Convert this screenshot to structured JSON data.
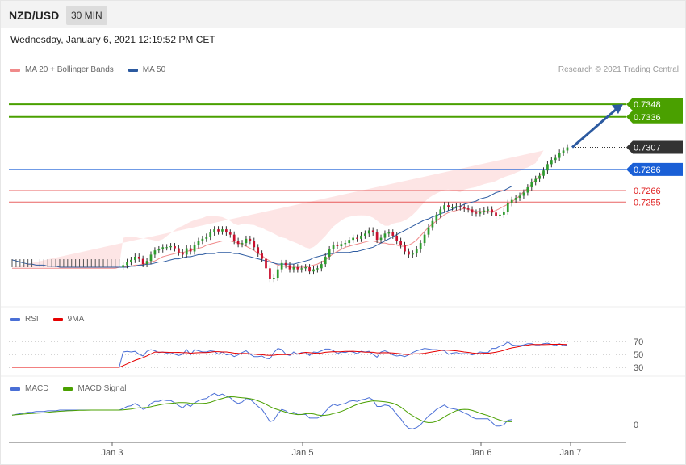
{
  "header": {
    "pair": "NZD/USD",
    "timeframe": "30 MIN"
  },
  "datetime": "Wednesday, January 6, 2021 12:19:52 PM CET",
  "credit": "Research © 2021 Trading Central",
  "legends": {
    "main": [
      {
        "label": "MA 20 + Bollinger Bands",
        "color": "#f08a8a"
      },
      {
        "label": "MA 50",
        "color": "#2c5aa0"
      }
    ],
    "rsi": [
      {
        "label": "RSI",
        "color": "#4a6fd6"
      },
      {
        "label": "9MA",
        "color": "#e60000"
      }
    ],
    "macd": [
      {
        "label": "MACD",
        "color": "#4a6fd6"
      },
      {
        "label": "MACD Signal",
        "color": "#4aa000"
      }
    ]
  },
  "chart_data": {
    "type": "candlestick",
    "x_ticks": [
      "Jan 3",
      "Jan 5",
      "Jan 6",
      "Jan 7"
    ],
    "price_range": [
      0.716,
      0.7365
    ],
    "levels": [
      {
        "value": 0.7348,
        "label": "0.7348",
        "kind": "resistance",
        "color": "#4aa000"
      },
      {
        "value": 0.7336,
        "label": "0.7336",
        "kind": "resistance",
        "color": "#4aa000"
      },
      {
        "value": 0.7307,
        "label": "0.7307",
        "kind": "last",
        "color": "#333333"
      },
      {
        "value": 0.7286,
        "label": "0.7286",
        "kind": "pivot",
        "color": "#1a5fd6"
      },
      {
        "value": 0.7266,
        "label": "0.7266",
        "kind": "support",
        "color": "#e02020"
      },
      {
        "value": 0.7255,
        "label": "0.7255",
        "kind": "support",
        "color": "#e02020"
      }
    ],
    "target": {
      "from": 0.7307,
      "to": 0.7348
    },
    "close": [
      0.7193,
      0.7193,
      0.7193,
      0.7193,
      0.7193,
      0.7193,
      0.7193,
      0.7193,
      0.7193,
      0.7193,
      0.7193,
      0.7193,
      0.7193,
      0.7193,
      0.7193,
      0.7193,
      0.7193,
      0.7193,
      0.7193,
      0.7193,
      0.7193,
      0.7193,
      0.7193,
      0.7193,
      0.7193,
      0.7193,
      0.7193,
      0.7193,
      0.7195,
      0.7198,
      0.72,
      0.7203,
      0.7201,
      0.7196,
      0.7199,
      0.7205,
      0.7209,
      0.721,
      0.7212,
      0.7212,
      0.7213,
      0.7211,
      0.7207,
      0.7205,
      0.7211,
      0.7208,
      0.7214,
      0.7218,
      0.722,
      0.7222,
      0.7226,
      0.7229,
      0.7227,
      0.7229,
      0.7226,
      0.7224,
      0.7218,
      0.7215,
      0.7216,
      0.722,
      0.7218,
      0.7212,
      0.7206,
      0.7201,
      0.7192,
      0.7182,
      0.7183,
      0.7191,
      0.7197,
      0.7195,
      0.7191,
      0.7193,
      0.7191,
      0.7192,
      0.7193,
      0.7189,
      0.7191,
      0.7192,
      0.7196,
      0.7203,
      0.721,
      0.7214,
      0.7213,
      0.7215,
      0.7216,
      0.7219,
      0.7221,
      0.722,
      0.7223,
      0.7225,
      0.7228,
      0.7226,
      0.7219,
      0.7221,
      0.7225,
      0.7226,
      0.7223,
      0.7218,
      0.7214,
      0.7208,
      0.7205,
      0.7206,
      0.721,
      0.7216,
      0.7224,
      0.7231,
      0.7237,
      0.7243,
      0.7248,
      0.7252,
      0.725,
      0.725,
      0.7251,
      0.725,
      0.7249,
      0.7248,
      0.7245,
      0.7244,
      0.7246,
      0.7247,
      0.7248,
      0.7245,
      0.7242,
      0.7243,
      0.7246,
      0.7254,
      0.7257,
      0.7259,
      0.7261,
      0.7264,
      0.7269,
      0.7274,
      0.7277,
      0.728,
      0.7285,
      0.7291,
      0.7295,
      0.7297,
      0.7302,
      0.7304,
      0.7307
    ],
    "ma20": [
      0.7192,
      0.7192,
      0.7192,
      0.7192,
      0.7192,
      0.7192,
      0.7192,
      0.7192,
      0.7192,
      0.7192,
      0.7192,
      0.7192,
      0.7192,
      0.7192,
      0.7192,
      0.7192,
      0.7192,
      0.7192,
      0.7192,
      0.7192,
      0.7192,
      0.7192,
      0.7192,
      0.7192,
      0.7192,
      0.7192,
      0.7192,
      0.7193,
      0.7193,
      0.7194,
      0.7194,
      0.7195,
      0.7195,
      0.7196,
      0.7197,
      0.7198,
      0.7199,
      0.7201,
      0.7203,
      0.7204,
      0.7205,
      0.7206,
      0.7207,
      0.7207,
      0.7208,
      0.7209,
      0.721,
      0.7211,
      0.7212,
      0.7214,
      0.7215,
      0.7216,
      0.7217,
      0.7218,
      0.7218,
      0.7218,
      0.7217,
      0.7216,
      0.7215,
      0.7213,
      0.7211,
      0.7209,
      0.7206,
      0.7204,
      0.7201,
      0.7199,
      0.7197,
      0.7195,
      0.7194,
      0.7194,
      0.7193,
      0.7193,
      0.7193,
      0.7193,
      0.7193,
      0.7194,
      0.7195,
      0.7196,
      0.7198,
      0.72,
      0.7203,
      0.7206,
      0.7208,
      0.721,
      0.7212,
      0.7213,
      0.7214,
      0.7215,
      0.7216,
      0.7217,
      0.7218,
      0.7218,
      0.7217,
      0.7216,
      0.7216,
      0.7215,
      0.7215,
      0.7214,
      0.7213,
      0.7213,
      0.7214,
      0.7216,
      0.7219,
      0.7223,
      0.7227,
      0.7231,
      0.7234,
      0.7237,
      0.724,
      0.7243,
      0.7245,
      0.7246,
      0.7247,
      0.7248,
      0.7249,
      0.7248,
      0.7247,
      0.7246,
      0.7246,
      0.7246,
      0.7246,
      0.7246,
      0.7247,
      0.7249,
      0.7251,
      0.7253,
      0.7255,
      0.7258,
      0.7261,
      0.7265,
      0.7268,
      0.7272,
      0.7276,
      0.728,
      0.7284
    ],
    "ma50": [
      0.72,
      0.7199,
      0.7198,
      0.7197,
      0.7196,
      0.7196,
      0.7195,
      0.7195,
      0.7195,
      0.7194,
      0.7194,
      0.7194,
      0.7193,
      0.7193,
      0.7193,
      0.7193,
      0.7193,
      0.7193,
      0.7193,
      0.7193,
      0.7193,
      0.7193,
      0.7193,
      0.7193,
      0.7193,
      0.7193,
      0.7193,
      0.7193,
      0.7193,
      0.7193,
      0.7194,
      0.7194,
      0.7195,
      0.7195,
      0.7196,
      0.7196,
      0.7197,
      0.7198,
      0.7198,
      0.7199,
      0.72,
      0.7201,
      0.7201,
      0.7202,
      0.7203,
      0.7203,
      0.7204,
      0.7205,
      0.7205,
      0.7206,
      0.7206,
      0.7206,
      0.7207,
      0.7207,
      0.7207,
      0.7207,
      0.7206,
      0.7206,
      0.7205,
      0.7204,
      0.7203,
      0.7202,
      0.7201,
      0.72,
      0.7199,
      0.7198,
      0.7197,
      0.7196,
      0.7196,
      0.7196,
      0.7196,
      0.7196,
      0.7197,
      0.7198,
      0.7199,
      0.72,
      0.7202,
      0.7203,
      0.7204,
      0.7205,
      0.7206,
      0.7206,
      0.7207,
      0.7207,
      0.7207,
      0.7207,
      0.7208,
      0.7208,
      0.7209,
      0.721,
      0.7211,
      0.7212,
      0.7214,
      0.7216,
      0.7218,
      0.722,
      0.7222,
      0.7224,
      0.7226,
      0.7228,
      0.723,
      0.7232,
      0.7234,
      0.7236,
      0.7238,
      0.7239,
      0.7241,
      0.7242,
      0.7244,
      0.7245,
      0.7247,
      0.7248,
      0.725,
      0.7251,
      0.7253,
      0.7254,
      0.7255,
      0.7256,
      0.7258,
      0.7259,
      0.726,
      0.7262,
      0.7264,
      0.7265,
      0.7266,
      0.7268,
      0.727
    ],
    "rsi": {
      "ticks": [
        70,
        50,
        30
      ]
    },
    "macd": {
      "ticks": [
        0
      ]
    }
  }
}
